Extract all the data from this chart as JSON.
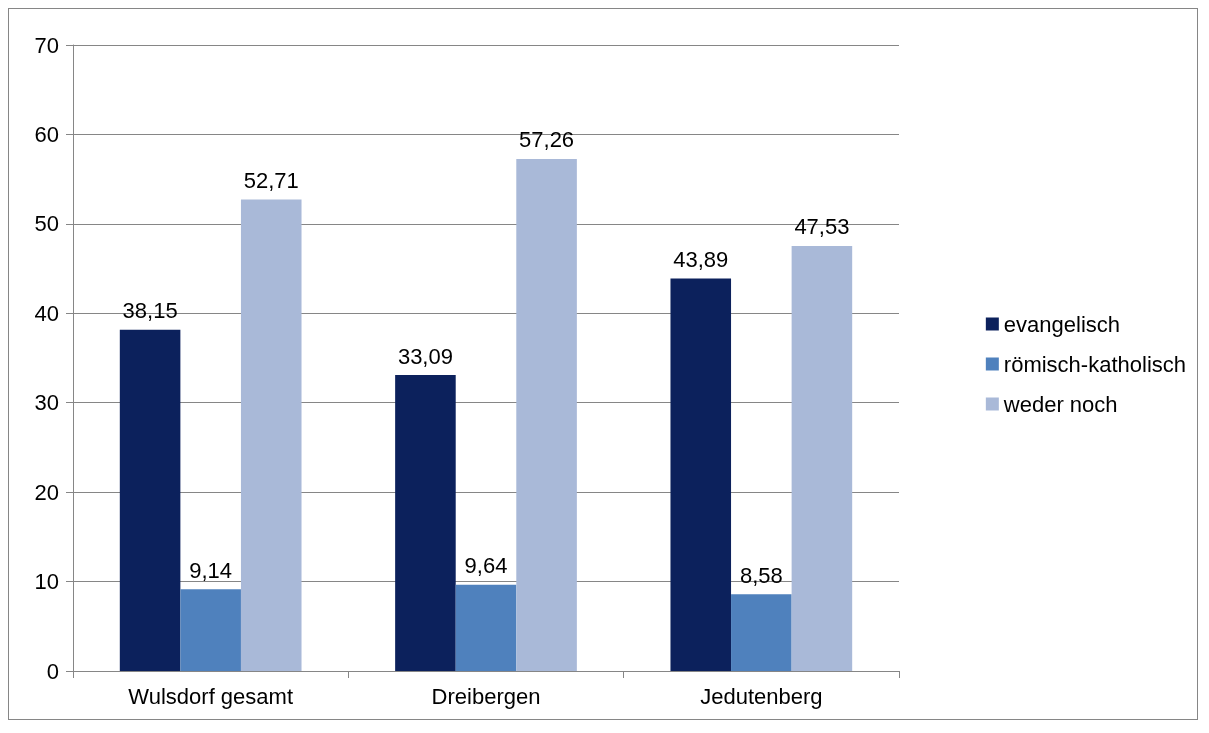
{
  "chart_data": {
    "type": "bar",
    "categories": [
      "Wulsdorf gesamt",
      "Dreibergen",
      "Jedutenberg"
    ],
    "series": [
      {
        "name": "evangelisch",
        "color": "#0c215c",
        "values": [
          38.15,
          33.09,
          43.89
        ],
        "value_labels": [
          "38,15",
          "33,09",
          "43,89"
        ]
      },
      {
        "name": "römisch-katholisch",
        "color": "#4f81bd",
        "values": [
          9.14,
          9.64,
          8.58
        ],
        "value_labels": [
          "9,14",
          "9,64",
          "8,58"
        ]
      },
      {
        "name": "weder noch",
        "color": "#a9b9d8",
        "values": [
          52.71,
          57.26,
          47.53
        ],
        "value_labels": [
          "52,71",
          "57,26",
          "47,53"
        ]
      }
    ],
    "ylim": [
      0,
      70
    ],
    "yticks": [
      0,
      10,
      20,
      30,
      40,
      50,
      60,
      70
    ],
    "grid": "y",
    "legend": "right"
  }
}
